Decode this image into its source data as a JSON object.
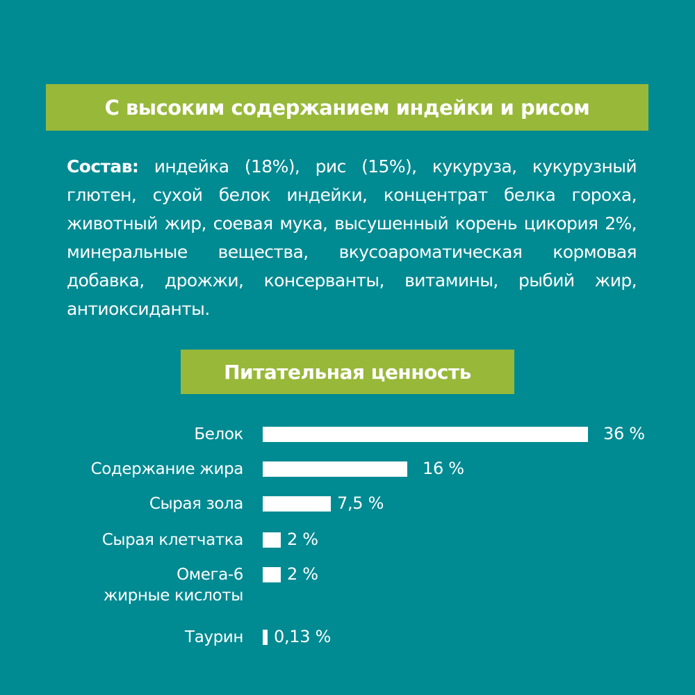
{
  "colors": {
    "background": "#008a92",
    "banner": "#98b83a",
    "text": "#ffffff",
    "bar": "#ffffff"
  },
  "header": {
    "title": "С высоким содержанием индейки и рисом"
  },
  "composition": {
    "label": "Состав:",
    "text": " индейка (18%), рис (15%), кукуруза, кукурузный глютен, сухой белок индейки, концентрат белка гороха, животный жир, соевая мука, высушенный корень цикория 2%, минеральные вещества, вкусоароматическая кормовая добавка, дрожжи, консерванты, витамины, рыбий жир, антиоксиданты."
  },
  "nutrition": {
    "title": "Питательная ценность",
    "rows": [
      {
        "label": "Белок",
        "label2": "",
        "value": 36,
        "display": "36 %"
      },
      {
        "label": "Содержание жира",
        "label2": "",
        "value": 16,
        "display": "16 %"
      },
      {
        "label": "Сырая зола",
        "label2": "",
        "value": 7.5,
        "display": "7,5 %"
      },
      {
        "label": "Сырая клетчатка",
        "label2": "",
        "value": 2,
        "display": "2 %"
      },
      {
        "label": "Омега-6",
        "label2": "жирные кислоты",
        "value": 2,
        "display": "2 %"
      },
      {
        "label": "Таурин",
        "label2": "",
        "value": 0.13,
        "display": "0,13 %"
      }
    ]
  },
  "chart_data": {
    "type": "bar",
    "orientation": "horizontal",
    "title": "Питательная ценность",
    "categories": [
      "Белок",
      "Содержание жира",
      "Сырая зола",
      "Сырая клетчатка",
      "Омега-6 жирные кислоты",
      "Таурин"
    ],
    "values": [
      36,
      16,
      7.5,
      2,
      2,
      0.13
    ],
    "value_labels": [
      "36 %",
      "16 %",
      "7,5 %",
      "2 %",
      "2 %",
      "0,13 %"
    ],
    "unit": "%",
    "xlabel": "",
    "ylabel": "",
    "grid": false,
    "legend": null
  }
}
